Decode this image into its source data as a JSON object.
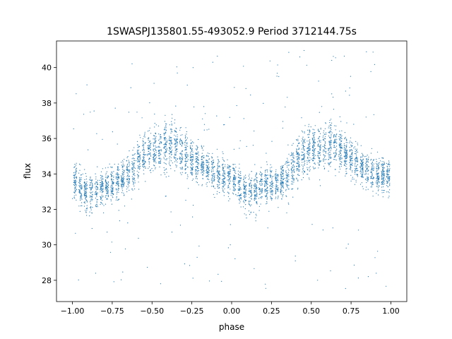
{
  "chart_data": {
    "type": "scatter",
    "title": "1SWASPJ135801.55-493052.9 Period 3712144.75s",
    "xlabel": "phase",
    "ylabel": "flux",
    "xlim": [
      -1.1,
      1.1
    ],
    "ylim": [
      26.8,
      41.5
    ],
    "xticks": [
      -1.0,
      -0.75,
      -0.5,
      -0.25,
      0.0,
      0.25,
      0.5,
      0.75,
      1.0
    ],
    "xtick_labels": [
      "−1.00",
      "−0.75",
      "−0.50",
      "−0.25",
      "0.00",
      "0.25",
      "0.50",
      "0.75",
      "1.00"
    ],
    "yticks": [
      28,
      30,
      32,
      34,
      36,
      38,
      40
    ],
    "ytick_labels": [
      "28",
      "30",
      "32",
      "34",
      "36",
      "38",
      "40"
    ],
    "grid": false,
    "legend": "none",
    "series": [
      {
        "color": "#1f77b4",
        "marker_size": 0.6,
        "phase_range": [
          -1.0,
          1.0
        ],
        "profile": {
          "phase": [
            0.0,
            0.05,
            0.1,
            0.15,
            0.2,
            0.25,
            0.3,
            0.35,
            0.4,
            0.45,
            0.5,
            0.55,
            0.6,
            0.65,
            0.7,
            0.75,
            0.8,
            0.85,
            0.9,
            0.95,
            1.0
          ],
          "flux_center": [
            33.8,
            33.2,
            32.9,
            33.0,
            33.3,
            33.4,
            33.5,
            34.0,
            34.5,
            35.2,
            35.3,
            35.4,
            35.7,
            35.6,
            35.2,
            34.8,
            34.5,
            34.2,
            34.0,
            33.9,
            33.8
          ],
          "flux_spread": [
            0.9,
            0.9,
            1.0,
            0.9,
            0.9,
            0.9,
            0.9,
            1.0,
            1.0,
            1.1,
            1.1,
            1.1,
            1.2,
            1.2,
            1.1,
            1.0,
            1.0,
            0.9,
            0.9,
            0.9,
            0.9
          ]
        },
        "outlier_flux_range": [
          27.5,
          41.0
        ]
      }
    ]
  }
}
